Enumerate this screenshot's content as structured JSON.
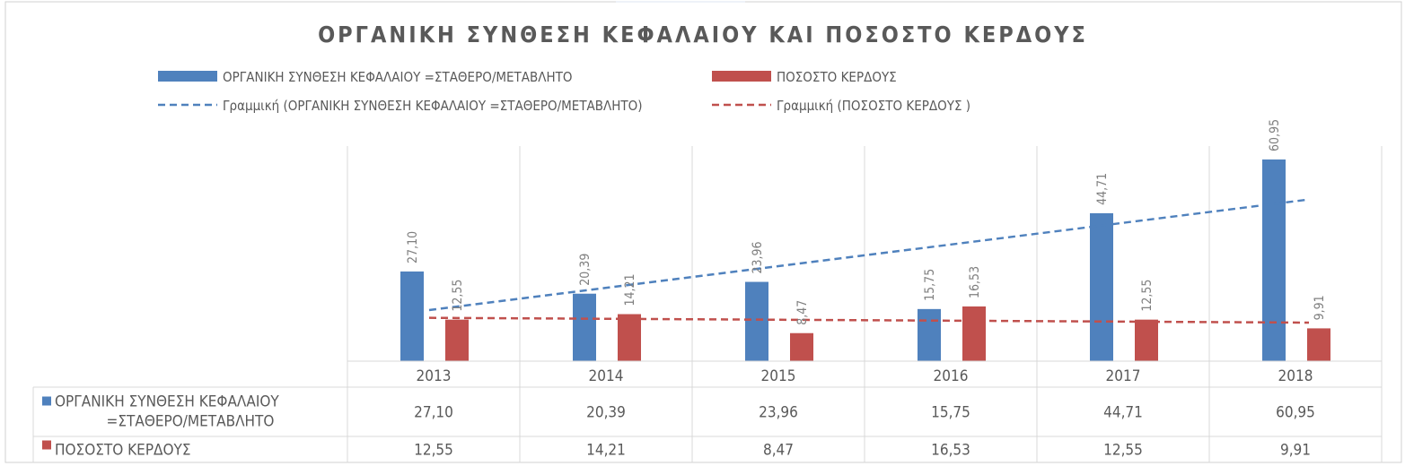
{
  "chart_data": {
    "type": "bar",
    "title": "ΟΡΓΑΝΙΚΗ ΣΥΝΘΕΣΗ ΚΕΦΑΛΑΙΟΥ ΚΑΙ ΠΟΣΟΣΤΟ ΚΕΡΔΟΥΣ",
    "categories": [
      "2013",
      "2014",
      "2015",
      "2016",
      "2017",
      "2018"
    ],
    "series": [
      {
        "name": "ΟΡΓΑΝΙΚΗ ΣΥΝΘΕΣΗ ΚΕΦΑΛΑΙΟΥ =ΣΤΑΘΕΡΟ/ΜΕΤΑΒΛΗΤΟ",
        "table_label_lines": [
          "ΟΡΓΑΝΙΚΗ ΣΥΝΘΕΣΗ ΚΕΦΑΛΑΙΟΥ",
          "=ΣΤΑΘΕΡΟ/ΜΕΤΑΒΛΗΤΟ"
        ],
        "values": [
          27.1,
          20.39,
          23.96,
          15.75,
          44.71,
          60.95
        ],
        "labels": [
          "27,10",
          "20,39",
          "23,96",
          "15,75",
          "44,71",
          "60,95"
        ],
        "color": "#4f81bd"
      },
      {
        "name": "ΠΟΣΟΣΤΟ ΚΕΡΔΟΥΣ",
        "table_label_lines": [
          "ΠΟΣΟΣΤΟ ΚΕΡΔΟΥΣ"
        ],
        "values": [
          12.55,
          14.21,
          8.47,
          16.53,
          12.55,
          9.91
        ],
        "labels": [
          "12,55",
          "14,21",
          "8,47",
          "16,53",
          "12,55",
          "9,91"
        ],
        "color": "#c0504d"
      }
    ],
    "trendlines": [
      {
        "name": "Γραμμική (ΟΡΓΑΝΙΚΗ ΣΥΝΘΕΣΗ ΚΕΦΑΛΑΙΟΥ =ΣΤΑΘΕΡΟ/ΜΕΤΑΒΛΗΤΟ)",
        "type": "linear",
        "series_index": 0,
        "color": "#4f81bd"
      },
      {
        "name": "Γραμμική (ΠΟΣΟΣΤΟ ΚΕΡΔΟΥΣ   )",
        "type": "linear",
        "series_index": 1,
        "color": "#c0504d"
      }
    ],
    "ylim": [
      0,
      65
    ],
    "grid": "vertical",
    "legend": "top",
    "data_table": true,
    "xlabel": "",
    "ylabel": ""
  }
}
